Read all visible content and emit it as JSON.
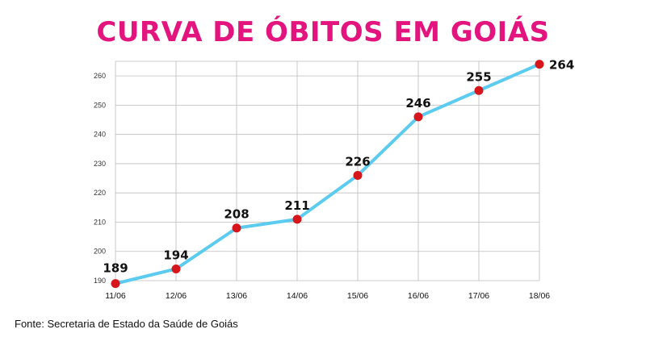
{
  "chart_data": {
    "type": "line",
    "title": "CURVA DE ÓBITOS EM GOIÁS",
    "xlabel": "",
    "ylabel": "",
    "categories": [
      "11/06",
      "12/06",
      "13/06",
      "14/06",
      "15/06",
      "16/06",
      "17/06",
      "18/06"
    ],
    "series": [
      {
        "values": [
          189,
          194,
          208,
          211,
          226,
          246,
          255,
          264
        ]
      }
    ],
    "data_labels": [
      "189",
      "194",
      "208",
      "211",
      "226",
      "246",
      "255",
      "264"
    ],
    "y_ticks": [
      190,
      200,
      210,
      220,
      230,
      240,
      250,
      260
    ],
    "ylim": [
      190,
      265
    ],
    "grid": true,
    "line_color": "#5bcbf0",
    "marker_color": "#d7161c",
    "title_color": "#e4147f"
  },
  "source": "Fonte: Secretaria de Estado da Saúde de Goiás"
}
